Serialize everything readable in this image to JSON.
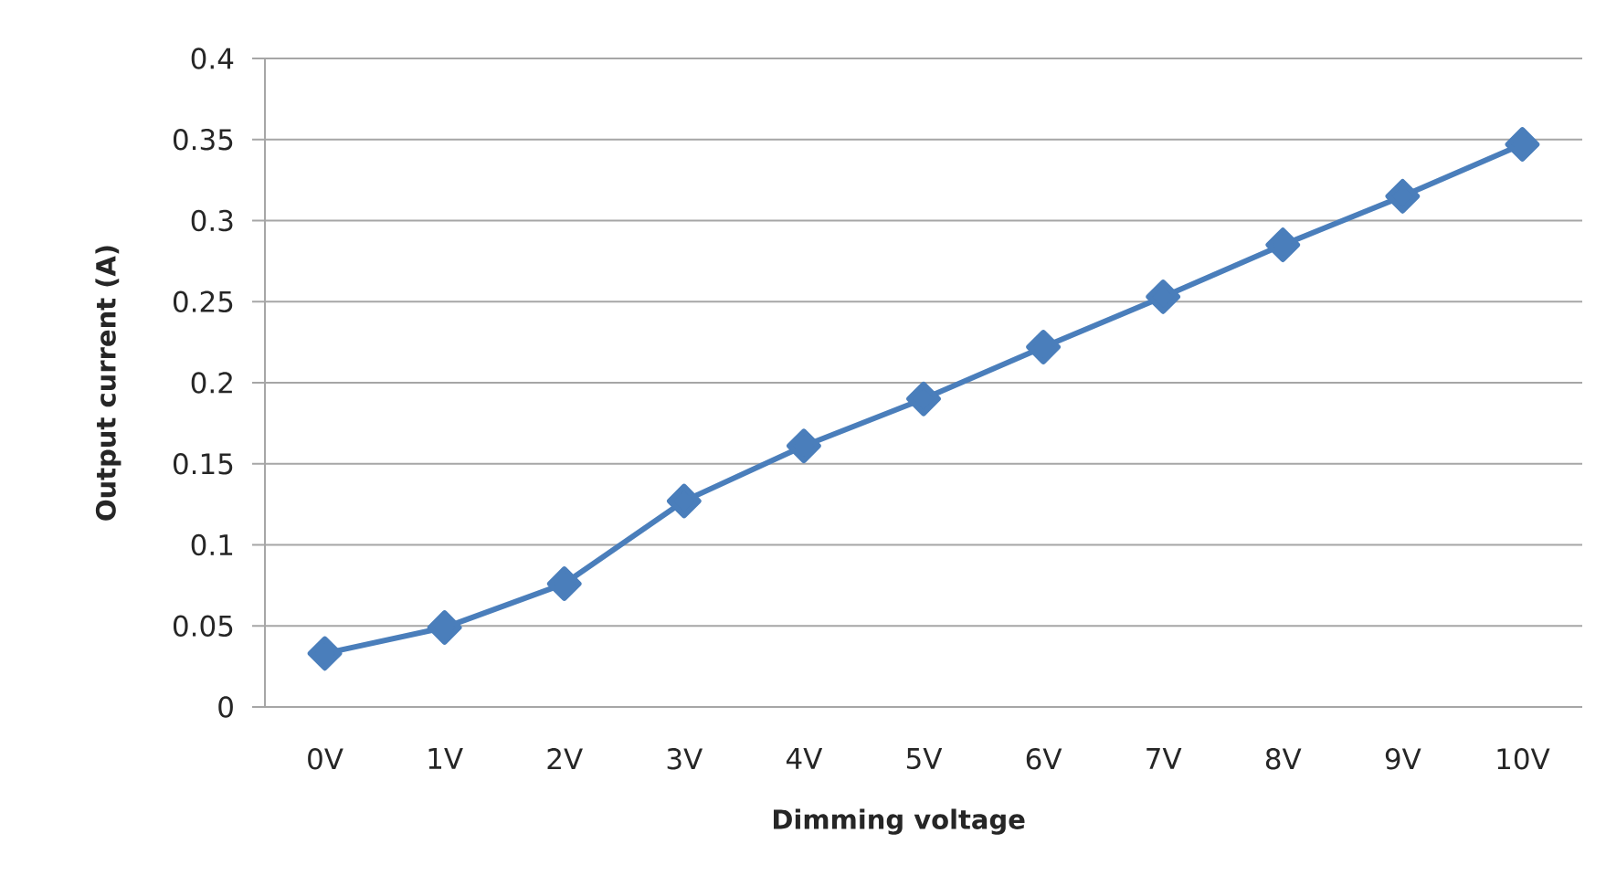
{
  "chart_data": {
    "type": "line",
    "xlabel": "Dimming voltage",
    "ylabel": "Output current (A)",
    "categories": [
      "0V",
      "1V",
      "2V",
      "3V",
      "4V",
      "5V",
      "6V",
      "7V",
      "8V",
      "9V",
      "10V"
    ],
    "values": [
      0.033,
      0.049,
      0.076,
      0.127,
      0.161,
      0.19,
      0.222,
      0.253,
      0.285,
      0.315,
      0.347
    ],
    "color": "#4a7ebb",
    "marker": "diamond",
    "line_style": "solid",
    "ylim": [
      0,
      0.4
    ],
    "yticks": [
      0,
      0.05,
      0.1,
      0.15,
      0.2,
      0.25,
      0.3,
      0.35,
      0.4
    ],
    "grid": "y"
  }
}
